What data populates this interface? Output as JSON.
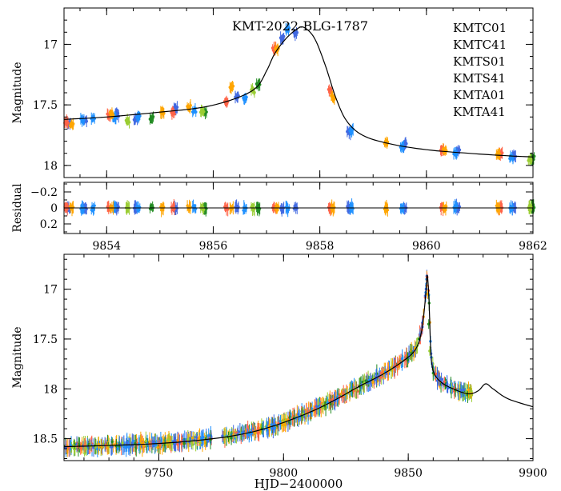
{
  "chart_data": [
    {
      "panel": "top",
      "type": "scatter",
      "title": "KMT-2022-BLG-1787",
      "ylabel": "Magnitude",
      "xlim": [
        9853.2,
        9862
      ],
      "ylim": [
        18.1,
        16.7
      ],
      "y_inverted": true,
      "xticks": [
        9854,
        9856,
        9858,
        9860,
        9862
      ],
      "yticks": [
        17,
        17.5,
        18
      ],
      "ytick_labels": [
        "17",
        "17.5",
        "18"
      ],
      "legend_position": "top-right",
      "series": [
        {
          "name": "KMTC01",
          "color": "#4169e1",
          "points": [
            [
              9853.3,
              17.65
            ],
            [
              9853.6,
              17.63
            ],
            [
              9854.2,
              17.58
            ],
            [
              9854.55,
              17.62
            ],
            [
              9855.3,
              17.53
            ],
            [
              9856.45,
              17.43
            ],
            [
              9857.3,
              16.95
            ],
            [
              9857.55,
              16.91
            ],
            [
              9858.55,
              17.73
            ],
            [
              9859.6,
              17.83
            ],
            [
              9860.6,
              17.88
            ],
            [
              9861.65,
              17.92
            ]
          ]
        },
        {
          "name": "KMTC41",
          "color": "#1e90ff",
          "points": [
            [
              9853.55,
              17.62
            ],
            [
              9853.75,
              17.61
            ],
            [
              9854.15,
              17.6
            ],
            [
              9854.6,
              17.6
            ],
            [
              9855.65,
              17.55
            ],
            [
              9856.6,
              17.45
            ],
            [
              9857.4,
              16.88
            ],
            [
              9858.6,
              17.71
            ],
            [
              9859.55,
              17.85
            ],
            [
              9860.55,
              17.9
            ],
            [
              9861.6,
              17.93
            ]
          ]
        },
        {
          "name": "KMTS01",
          "color": "#ff6347",
          "points": [
            [
              9853.25,
              17.64
            ],
            [
              9854.05,
              17.59
            ],
            [
              9855.25,
              17.56
            ],
            [
              9856.25,
              17.48
            ],
            [
              9857.15,
              17.03
            ],
            [
              9858.2,
              17.38
            ],
            [
              9860.3,
              17.87
            ],
            [
              9861.4,
              17.9
            ]
          ]
        },
        {
          "name": "KMTS41",
          "color": "#ffa500",
          "points": [
            [
              9853.35,
              17.66
            ],
            [
              9854.1,
              17.58
            ],
            [
              9855.05,
              17.56
            ],
            [
              9855.55,
              17.52
            ],
            [
              9856.35,
              17.35
            ],
            [
              9857.2,
              17.04
            ],
            [
              9858.25,
              17.44
            ],
            [
              9859.25,
              17.81
            ],
            [
              9860.35,
              17.88
            ],
            [
              9861.35,
              17.91
            ]
          ]
        },
        {
          "name": "KMTA01",
          "color": "#228b22",
          "points": [
            [
              9854.85,
              17.61
            ],
            [
              9855.85,
              17.56
            ],
            [
              9856.85,
              17.34
            ],
            [
              9862.0,
              17.94
            ]
          ]
        },
        {
          "name": "KMTA41",
          "color": "#9acd32",
          "points": [
            [
              9854.4,
              17.63
            ],
            [
              9855.8,
              17.55
            ],
            [
              9856.75,
              17.38
            ],
            [
              9861.95,
              17.95
            ]
          ]
        }
      ]
    },
    {
      "panel": "residual",
      "type": "scatter",
      "ylabel": "Residual",
      "xlim": [
        9853.2,
        9862
      ],
      "ylim": [
        0.32,
        -0.32
      ],
      "y_inverted": true,
      "xticks": [
        9854,
        9856,
        9858,
        9860,
        9862
      ],
      "xtick_labels": [
        "9854",
        "9856",
        "9858",
        "9860",
        "9862"
      ],
      "yticks": [
        0.2,
        0,
        -0.2
      ],
      "ytick_labels": [
        "0.2",
        "0",
        "−0.2"
      ],
      "reference_line": 0
    },
    {
      "panel": "bottom",
      "type": "scatter",
      "ylabel": "Magnitude",
      "xlabel": "HJD−2400000",
      "xlim": [
        9712,
        9900
      ],
      "ylim": [
        18.72,
        16.65
      ],
      "y_inverted": true,
      "xticks": [
        9750,
        9800,
        9850,
        9900
      ],
      "xtick_labels": [
        "9750",
        "9800",
        "9850",
        "9900"
      ],
      "yticks": [
        17,
        17.5,
        18,
        18.5
      ],
      "ytick_labels": [
        "17",
        "17.5",
        "18",
        "18.5"
      ]
    }
  ]
}
